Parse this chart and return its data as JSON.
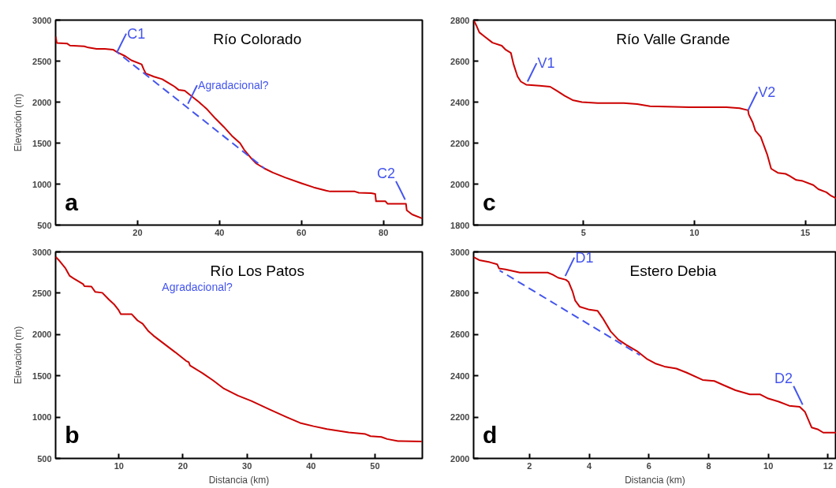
{
  "chart_data": [
    {
      "type": "line",
      "title": "Río Colorado",
      "ylabel": "Elevación (m)",
      "xlim": [
        0,
        89.5
      ],
      "ylim": [
        500,
        3000
      ],
      "xticks": [
        20,
        40,
        60,
        80
      ],
      "yticks": [
        500,
        1000,
        1500,
        2000,
        2500,
        3000
      ],
      "annotations": [
        "a",
        {
          "text": "C1",
          "x": 15,
          "y": 2610
        },
        {
          "text": "Agradacional?",
          "x": 32.3,
          "y": 1980
        },
        {
          "text": "C2",
          "x": 85.3,
          "y": 810
        }
      ],
      "series": [
        {
          "color": "#cc0000",
          "line_style": "solid",
          "x": [
            0,
            0.3,
            2.8,
            3.5,
            7,
            8,
            10,
            12,
            14,
            15,
            17,
            18.5,
            21,
            21.5,
            22,
            24,
            26,
            28,
            29,
            30,
            31.5,
            33,
            35,
            37,
            39,
            41,
            43,
            45,
            46,
            47,
            48,
            49,
            51,
            53,
            56,
            60,
            63,
            66,
            67,
            73,
            74,
            77,
            78,
            78.2,
            80.5,
            81,
            85.5,
            85.7,
            87,
            89.5
          ],
          "values": [
            2800,
            2720,
            2715,
            2690,
            2680,
            2665,
            2650,
            2648,
            2640,
            2610,
            2560,
            2510,
            2460,
            2400,
            2350,
            2310,
            2280,
            2220,
            2190,
            2150,
            2140,
            2080,
            2000,
            1910,
            1800,
            1700,
            1590,
            1500,
            1420,
            1360,
            1300,
            1250,
            1190,
            1140,
            1080,
            1010,
            960,
            920,
            910,
            910,
            895,
            890,
            880,
            790,
            790,
            760,
            760,
            680,
            630,
            580
          ]
        },
        {
          "color": "#4455ee",
          "line_style": "dashed",
          "x": [
            15,
            51
          ],
          "values": [
            2610,
            1190
          ]
        }
      ]
    },
    {
      "type": "line",
      "title": "Río Valle Grande",
      "xlim": [
        0.05,
        16.4
      ],
      "ylim": [
        1800,
        2800
      ],
      "xticks": [
        5,
        10,
        15
      ],
      "yticks": [
        1800,
        2000,
        2200,
        2400,
        2600,
        2800
      ],
      "annotations": [
        "c",
        {
          "text": "V1",
          "x": 2.48,
          "y": 2500
        },
        {
          "text": "V2",
          "x": 12.42,
          "y": 2360
        }
      ],
      "series": [
        {
          "color": "#cc0000",
          "line_style": "solid",
          "x": [
            0.05,
            0.19,
            0.31,
            0.54,
            0.9,
            1.32,
            1.5,
            1.73,
            1.85,
            2.03,
            2.18,
            2.42,
            3.03,
            3.5,
            3.8,
            4.16,
            4.51,
            4.93,
            5.64,
            6.82,
            7.42,
            8.0,
            9.79,
            11.45,
            12.04,
            12.42,
            12.45,
            12.63,
            12.75,
            12.99,
            13.28,
            13.46,
            13.76,
            14.11,
            14.29,
            14.59,
            14.88,
            15.36,
            15.59,
            15.95,
            16.13,
            16.4
          ],
          "values": [
            2800,
            2770,
            2740,
            2720,
            2690,
            2675,
            2655,
            2640,
            2585,
            2525,
            2500,
            2485,
            2480,
            2475,
            2455,
            2430,
            2410,
            2400,
            2395,
            2395,
            2390,
            2380,
            2375,
            2375,
            2370,
            2360,
            2340,
            2300,
            2260,
            2230,
            2145,
            2075,
            2055,
            2050,
            2040,
            2020,
            2015,
            1995,
            1975,
            1960,
            1945,
            1930
          ]
        }
      ]
    },
    {
      "type": "line",
      "title": "Río Los Patos",
      "xlabel": "Distancia (km)",
      "ylabel": "Elevación (m)",
      "xlim": [
        0.1,
        57.4
      ],
      "ylim": [
        500,
        3000
      ],
      "xticks": [
        10,
        20,
        30,
        40,
        50
      ],
      "yticks": [
        500,
        1000,
        1500,
        2000,
        2500,
        3000
      ],
      "annotations": [
        "b",
        "Agradacional?"
      ],
      "series": [
        {
          "color": "#cc0000",
          "line_style": "solid",
          "x": [
            0.1,
            0.6,
            1.65,
            2.3,
            2.9,
            4.4,
            4.6,
            5.7,
            6.3,
            7.4,
            8.4,
            9.3,
            9.9,
            10.3,
            12.0,
            12.9,
            13.7,
            14.6,
            15.4,
            17.1,
            18.8,
            20.5,
            20.9,
            21.1,
            23.1,
            24.7,
            26.4,
            28.6,
            30.7,
            33.6,
            36.2,
            38.3,
            40.4,
            42.5,
            45.9,
            48.5,
            49.3,
            51.0,
            51.9,
            53.6,
            57.3
          ],
          "values": [
            2940,
            2900,
            2800,
            2710,
            2680,
            2610,
            2585,
            2580,
            2515,
            2505,
            2425,
            2360,
            2300,
            2245,
            2245,
            2170,
            2130,
            2040,
            1985,
            1885,
            1785,
            1680,
            1665,
            1625,
            1530,
            1445,
            1345,
            1260,
            1195,
            1090,
            1000,
            930,
            890,
            855,
            815,
            795,
            770,
            760,
            735,
            710,
            705
          ]
        }
      ]
    },
    {
      "type": "line",
      "title": "Estero Debia",
      "xlabel": "Distancia (km)",
      "xlim": [
        0.13,
        12.28
      ],
      "ylim": [
        2000,
        3000
      ],
      "xticks": [
        2,
        4,
        6,
        8,
        10,
        12
      ],
      "yticks": [
        2000,
        2200,
        2400,
        2600,
        2800,
        3000
      ],
      "annotations": [
        "d",
        {
          "text": "D1",
          "x": 3.2,
          "y": 2883
        },
        {
          "text": "D2",
          "x": 11.15,
          "y": 2260
        }
      ],
      "series": [
        {
          "color": "#cc0000",
          "line_style": "solid",
          "x": [
            0.13,
            0.32,
            0.67,
            0.92,
            0.98,
            1.2,
            1.68,
            2.61,
            2.78,
            2.96,
            3.22,
            3.31,
            3.44,
            3.53,
            3.68,
            4.01,
            4.28,
            4.45,
            4.72,
            4.98,
            5.24,
            5.6,
            5.95,
            6.21,
            6.52,
            6.92,
            7.27,
            7.8,
            8.19,
            8.5,
            8.9,
            9.38,
            9.73,
            10.0,
            10.35,
            10.7,
            11.05,
            11.23,
            11.45,
            11.67,
            11.84,
            12.28
          ],
          "values": [
            2975,
            2960,
            2950,
            2940,
            2920,
            2915,
            2900,
            2900,
            2890,
            2875,
            2865,
            2855,
            2810,
            2765,
            2735,
            2720,
            2715,
            2680,
            2615,
            2575,
            2550,
            2520,
            2480,
            2460,
            2445,
            2435,
            2415,
            2380,
            2375,
            2355,
            2330,
            2310,
            2310,
            2290,
            2275,
            2255,
            2250,
            2225,
            2150,
            2140,
            2125,
            2125
          ]
        },
        {
          "color": "#4455ee",
          "line_style": "dashed",
          "x": [
            1.0,
            5.7
          ],
          "values": [
            2910,
            2500
          ]
        }
      ]
    }
  ]
}
